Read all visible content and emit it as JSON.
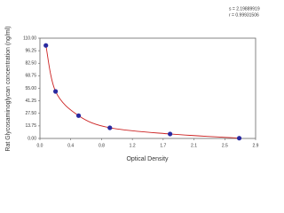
{
  "chart_data": {
    "type": "line",
    "y_label": "Rat Glycosaminoglycan concentration (ng/ml)",
    "x_label": "Optical Density",
    "annotations": [
      "s = 2.19889919",
      "r = 0.99931506"
    ],
    "x": [
      0.08,
      0.21,
      0.52,
      0.94,
      1.75,
      2.68
    ],
    "series": [
      {
        "color": "#cc2222",
        "marker_color": "#2a2aa0",
        "values": [
          102,
          51.6,
          25,
          11.7,
          4.9,
          0.3
        ]
      }
    ],
    "xlim": [
      0,
      2.9
    ],
    "xticks": [
      {
        "value": 0,
        "label": "0.0"
      },
      {
        "value": 0.414,
        "label": "0.4"
      },
      {
        "value": 0.829,
        "label": "0.8"
      },
      {
        "value": 1.243,
        "label": "1.2"
      },
      {
        "value": 1.657,
        "label": "1.7"
      },
      {
        "value": 2.071,
        "label": "2.1"
      },
      {
        "value": 2.486,
        "label": "2.5"
      },
      2.9
    ],
    "ylim": [
      0,
      110
    ],
    "yticks": [
      {
        "value": 0,
        "label": "0.00"
      },
      13.75,
      {
        "value": 27.5,
        "label": "27.50"
      },
      41.25,
      {
        "value": 55,
        "label": "55.00"
      },
      68.75,
      {
        "value": 82.5,
        "label": "82.50"
      },
      96.25,
      {
        "value": 110,
        "label": "110.00"
      }
    ],
    "grid": false
  }
}
